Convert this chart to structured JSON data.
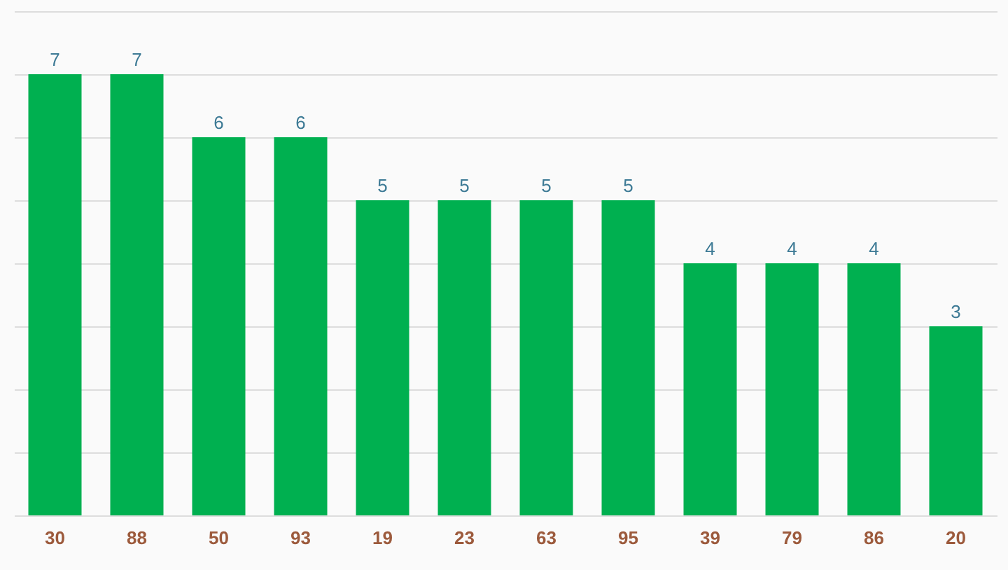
{
  "chart_data": {
    "type": "bar",
    "categories": [
      "30",
      "88",
      "50",
      "93",
      "19",
      "23",
      "63",
      "95",
      "39",
      "79",
      "86",
      "20"
    ],
    "values": [
      7,
      7,
      6,
      6,
      5,
      5,
      5,
      5,
      4,
      4,
      4,
      3
    ],
    "color": "#00b050",
    "ylim": [
      0,
      8
    ],
    "yticks": [
      {
        "value": 0,
        "label": null
      },
      {
        "value": 1,
        "label": null
      },
      {
        "value": 2,
        "label": null
      },
      {
        "value": 3,
        "label": null
      },
      {
        "value": 4,
        "label": null
      },
      {
        "value": 5,
        "label": null
      },
      {
        "value": 6,
        "label": null
      },
      {
        "value": 7,
        "label": null
      },
      {
        "value": 8,
        "label": null
      }
    ],
    "grid": "y",
    "tick_labels": "x",
    "data_labels": true
  }
}
